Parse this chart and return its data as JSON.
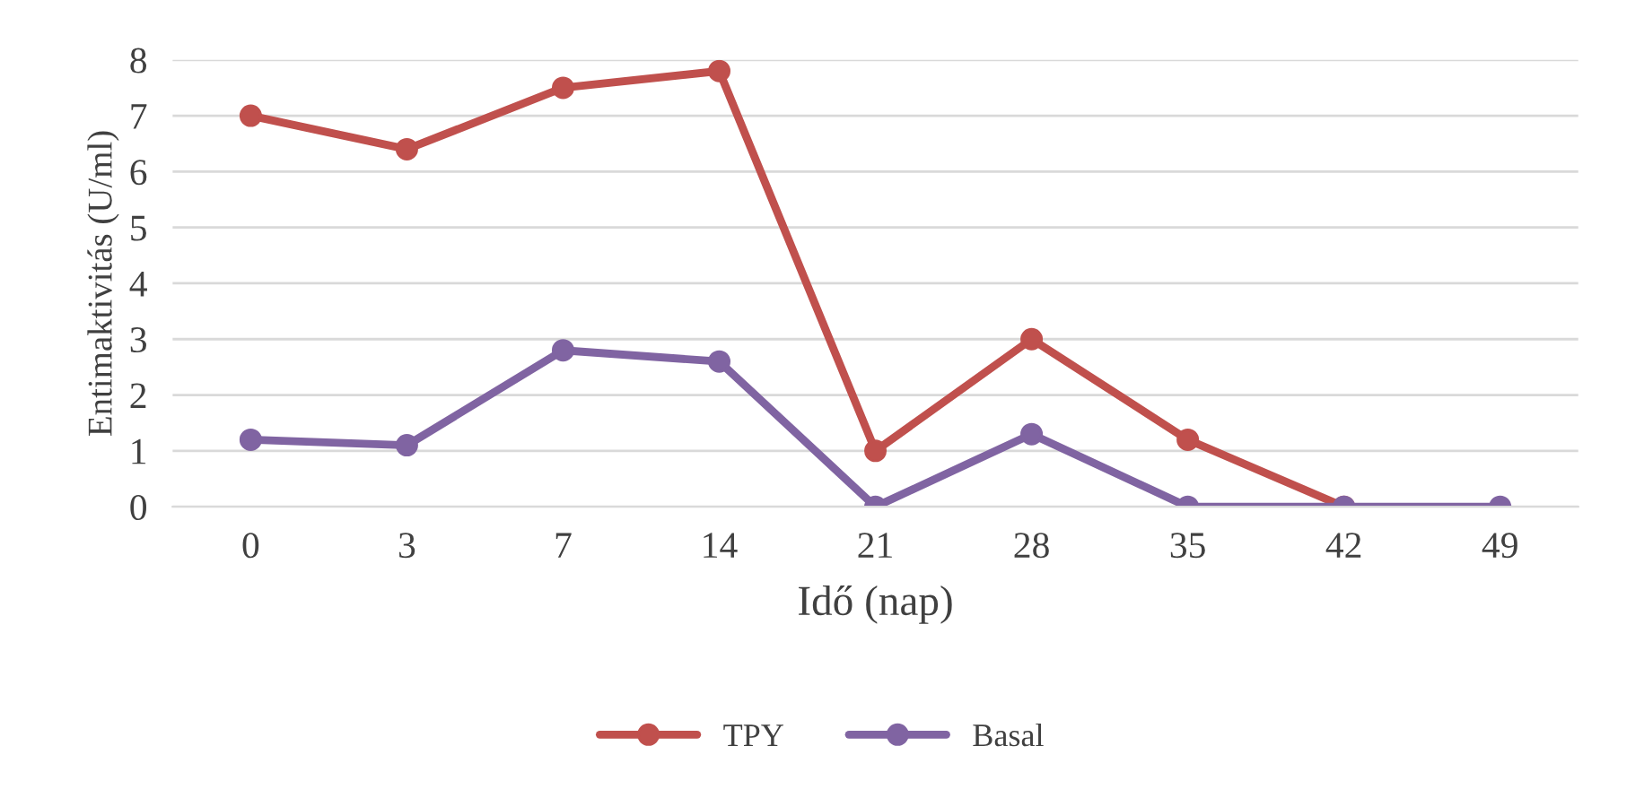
{
  "chart_data": {
    "type": "line",
    "xlabel": "Idő (nap)",
    "ylabel": "Entimaktivitás (U/ml)",
    "categories": [
      "0",
      "3",
      "7",
      "14",
      "21",
      "28",
      "35",
      "42",
      "49"
    ],
    "series": [
      {
        "name": "TPY",
        "color": "#c0504d",
        "values": [
          7.0,
          6.4,
          7.5,
          7.8,
          1.0,
          3.0,
          1.2,
          0,
          null
        ]
      },
      {
        "name": "Basal",
        "color": "#8064a2",
        "values": [
          1.2,
          1.1,
          2.8,
          2.6,
          0,
          1.3,
          0,
          0,
          0
        ]
      }
    ],
    "ylim": [
      0,
      8
    ],
    "yticks": [
      0,
      1,
      2,
      3,
      4,
      5,
      6,
      7,
      8
    ],
    "grid": "y",
    "legend": "bottom",
    "marker": "circle",
    "line_style": "solid"
  }
}
